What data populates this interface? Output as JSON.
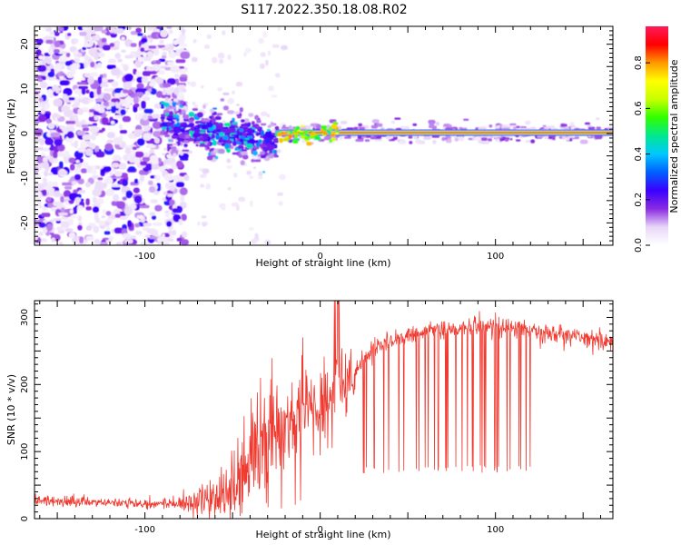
{
  "title": "S117.2022.350.18.08.R02",
  "chart_data": [
    {
      "type": "heatmap",
      "xlabel": "Height of straight line (km)",
      "ylabel": "Frequency (Hz)",
      "xlim": [
        -163,
        167
      ],
      "ylim": [
        -25,
        24
      ],
      "x_ticks": [
        -100,
        0,
        100
      ],
      "y_ticks": [
        -20,
        -10,
        0,
        10,
        20
      ],
      "colorbar": {
        "label": "Normalized spectral amplitude",
        "range": [
          0,
          0.96
        ],
        "ticks": [
          "0.0",
          "0.2",
          "0.4",
          "0.6",
          "0.8"
        ],
        "colors": [
          "#ffffff",
          "#e8d6f8",
          "#8a2be2",
          "#3a00ff",
          "#0060ff",
          "#00c8ff",
          "#00e890",
          "#30ff00",
          "#c8ff00",
          "#ffff00",
          "#ff9900",
          "#ff0000",
          "#ff1a5a"
        ],
        "placement": "right"
      },
      "features": {
        "noise_region_x": [
          -163,
          -85
        ],
        "transition_region_x": [
          -90,
          -25
        ],
        "line_start_x": -25,
        "line_frequency_hz": 0.2,
        "line_peak_amplitude": 0.9
      }
    },
    {
      "type": "line",
      "xlabel": "Height of straight line (km)",
      "ylabel": "SNR (10 * v/v)",
      "xlim": [
        -163,
        167
      ],
      "ylim": [
        0,
        325
      ],
      "x_ticks": [
        -100,
        0,
        100
      ],
      "y_ticks": [
        0,
        100,
        200,
        300
      ],
      "series": [
        {
          "color": "#f03a30",
          "baseline_x": [
            -163,
            -140,
            -120,
            -100,
            -85,
            -75,
            -60,
            -50,
            -40,
            -30,
            -20,
            -10,
            0,
            5,
            10,
            15,
            20,
            30,
            40,
            60,
            80,
            100,
            120,
            140,
            167
          ],
          "baseline_y": [
            27,
            25,
            24,
            23,
            22,
            24,
            32,
            48,
            85,
            120,
            138,
            150,
            170,
            180,
            195,
            205,
            225,
            250,
            265,
            280,
            285,
            288,
            280,
            275,
            265
          ],
          "dropouts_x": [
            22,
            120
          ],
          "dropout_floor": 68,
          "spike_max": 325
        }
      ]
    }
  ]
}
